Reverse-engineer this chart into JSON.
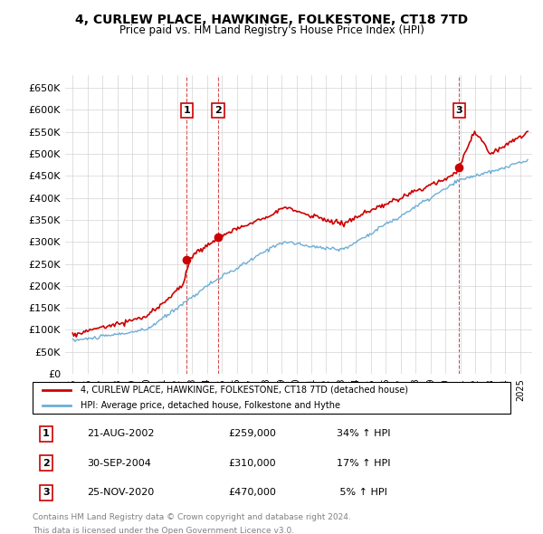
{
  "title": "4, CURLEW PLACE, HAWKINGE, FOLKESTONE, CT18 7TD",
  "subtitle": "Price paid vs. HM Land Registry's House Price Index (HPI)",
  "ylabel_ticks": [
    "£0",
    "£50K",
    "£100K",
    "£150K",
    "£200K",
    "£250K",
    "£300K",
    "£350K",
    "£400K",
    "£450K",
    "£500K",
    "£550K",
    "£600K",
    "£650K"
  ],
  "ytick_values": [
    0,
    50000,
    100000,
    150000,
    200000,
    250000,
    300000,
    350000,
    400000,
    450000,
    500000,
    550000,
    600000,
    650000
  ],
  "hpi_color": "#6baed6",
  "price_color": "#cc0000",
  "vline_color": "#cc0000",
  "purchases": [
    {
      "label": "1",
      "date_num": 2002.64,
      "price": 259000,
      "pct": "34%",
      "date_str": "21-AUG-2002"
    },
    {
      "label": "2",
      "date_num": 2004.75,
      "price": 310000,
      "pct": "17%",
      "date_str": "30-SEP-2004"
    },
    {
      "label": "3",
      "date_num": 2020.9,
      "price": 470000,
      "pct": "5%",
      "date_str": "25-NOV-2020"
    }
  ],
  "legend_line1": "4, CURLEW PLACE, HAWKINGE, FOLKESTONE, CT18 7TD (detached house)",
  "legend_line2": "HPI: Average price, detached house, Folkestone and Hythe",
  "footer1": "Contains HM Land Registry data © Crown copyright and database right 2024.",
  "footer2": "This data is licensed under the Open Government Licence v3.0.",
  "table_rows": [
    [
      "1",
      "21-AUG-2002",
      "£259,000",
      "34% ↑ HPI"
    ],
    [
      "2",
      "30-SEP-2004",
      "£310,000",
      "17% ↑ HPI"
    ],
    [
      "3",
      "25-NOV-2020",
      "£470,000",
      " 5% ↑ HPI"
    ]
  ],
  "xlim": [
    1994.5,
    2025.8
  ],
  "ylim": [
    0,
    680000
  ]
}
